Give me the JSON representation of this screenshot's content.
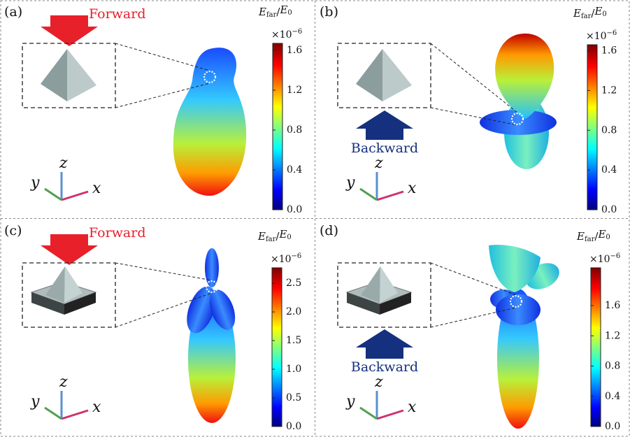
{
  "panels": [
    {
      "label": "(a)",
      "direction": "Forward",
      "colorbar": {
        "title": [
          "E",
          "far",
          "/",
          "E",
          "0"
        ],
        "scale": [
          "×10",
          "−6"
        ],
        "lim": [
          0,
          1.67
        ],
        "ticks": [
          {
            "value": 0,
            "label": "0.0"
          },
          {
            "value": 0.4,
            "label": "0.4"
          },
          {
            "value": 0.8,
            "label": "0.8"
          },
          {
            "value": 1.2,
            "label": "1.2"
          },
          {
            "value": 1.6,
            "label": "1.6"
          }
        ]
      },
      "axes": [
        "y",
        "z",
        "x"
      ]
    },
    {
      "label": "(b)",
      "direction": "Backward",
      "colorbar": {
        "title": [
          "E",
          "far",
          "/",
          "E",
          "0"
        ],
        "scale": [
          "×10",
          "−6"
        ],
        "lim": [
          0,
          1.66
        ],
        "ticks": [
          {
            "value": 0,
            "label": "0.0"
          },
          {
            "value": 0.4,
            "label": "0.4"
          },
          {
            "value": 0.8,
            "label": "0.8"
          },
          {
            "value": 1.2,
            "label": "1.2"
          },
          {
            "value": 1.6,
            "label": "1.6"
          }
        ]
      },
      "axes": [
        "y",
        "z",
        "x"
      ]
    },
    {
      "label": "(c)",
      "direction": "Forward",
      "colorbar": {
        "title": [
          "E",
          "far",
          "/",
          "E",
          "0"
        ],
        "scale": [
          "×10",
          "−6"
        ],
        "lim": [
          0,
          2.77
        ],
        "ticks": [
          {
            "value": 0,
            "label": "0.0"
          },
          {
            "value": 0.5,
            "label": "0.5"
          },
          {
            "value": 1,
            "label": "1.0"
          },
          {
            "value": 1.5,
            "label": "1.5"
          },
          {
            "value": 2,
            "label": "2.0"
          },
          {
            "value": 2.5,
            "label": "2.5"
          }
        ]
      },
      "axes": [
        "y",
        "z",
        "x"
      ]
    },
    {
      "label": "(d)",
      "direction": "Backward",
      "colorbar": {
        "title": [
          "E",
          "far",
          "/",
          "E",
          "0"
        ],
        "scale": [
          "×10",
          "−6"
        ],
        "lim": [
          0,
          2.1
        ],
        "ticks": [
          {
            "value": 0,
            "label": "0.0"
          },
          {
            "value": 0.4,
            "label": "0.4"
          },
          {
            "value": 0.8,
            "label": "0.8"
          },
          {
            "value": 1.2,
            "label": "1.2"
          },
          {
            "value": 1.6,
            "label": "1.6"
          }
        ]
      },
      "axes": [
        "y",
        "z",
        "x"
      ]
    }
  ]
}
